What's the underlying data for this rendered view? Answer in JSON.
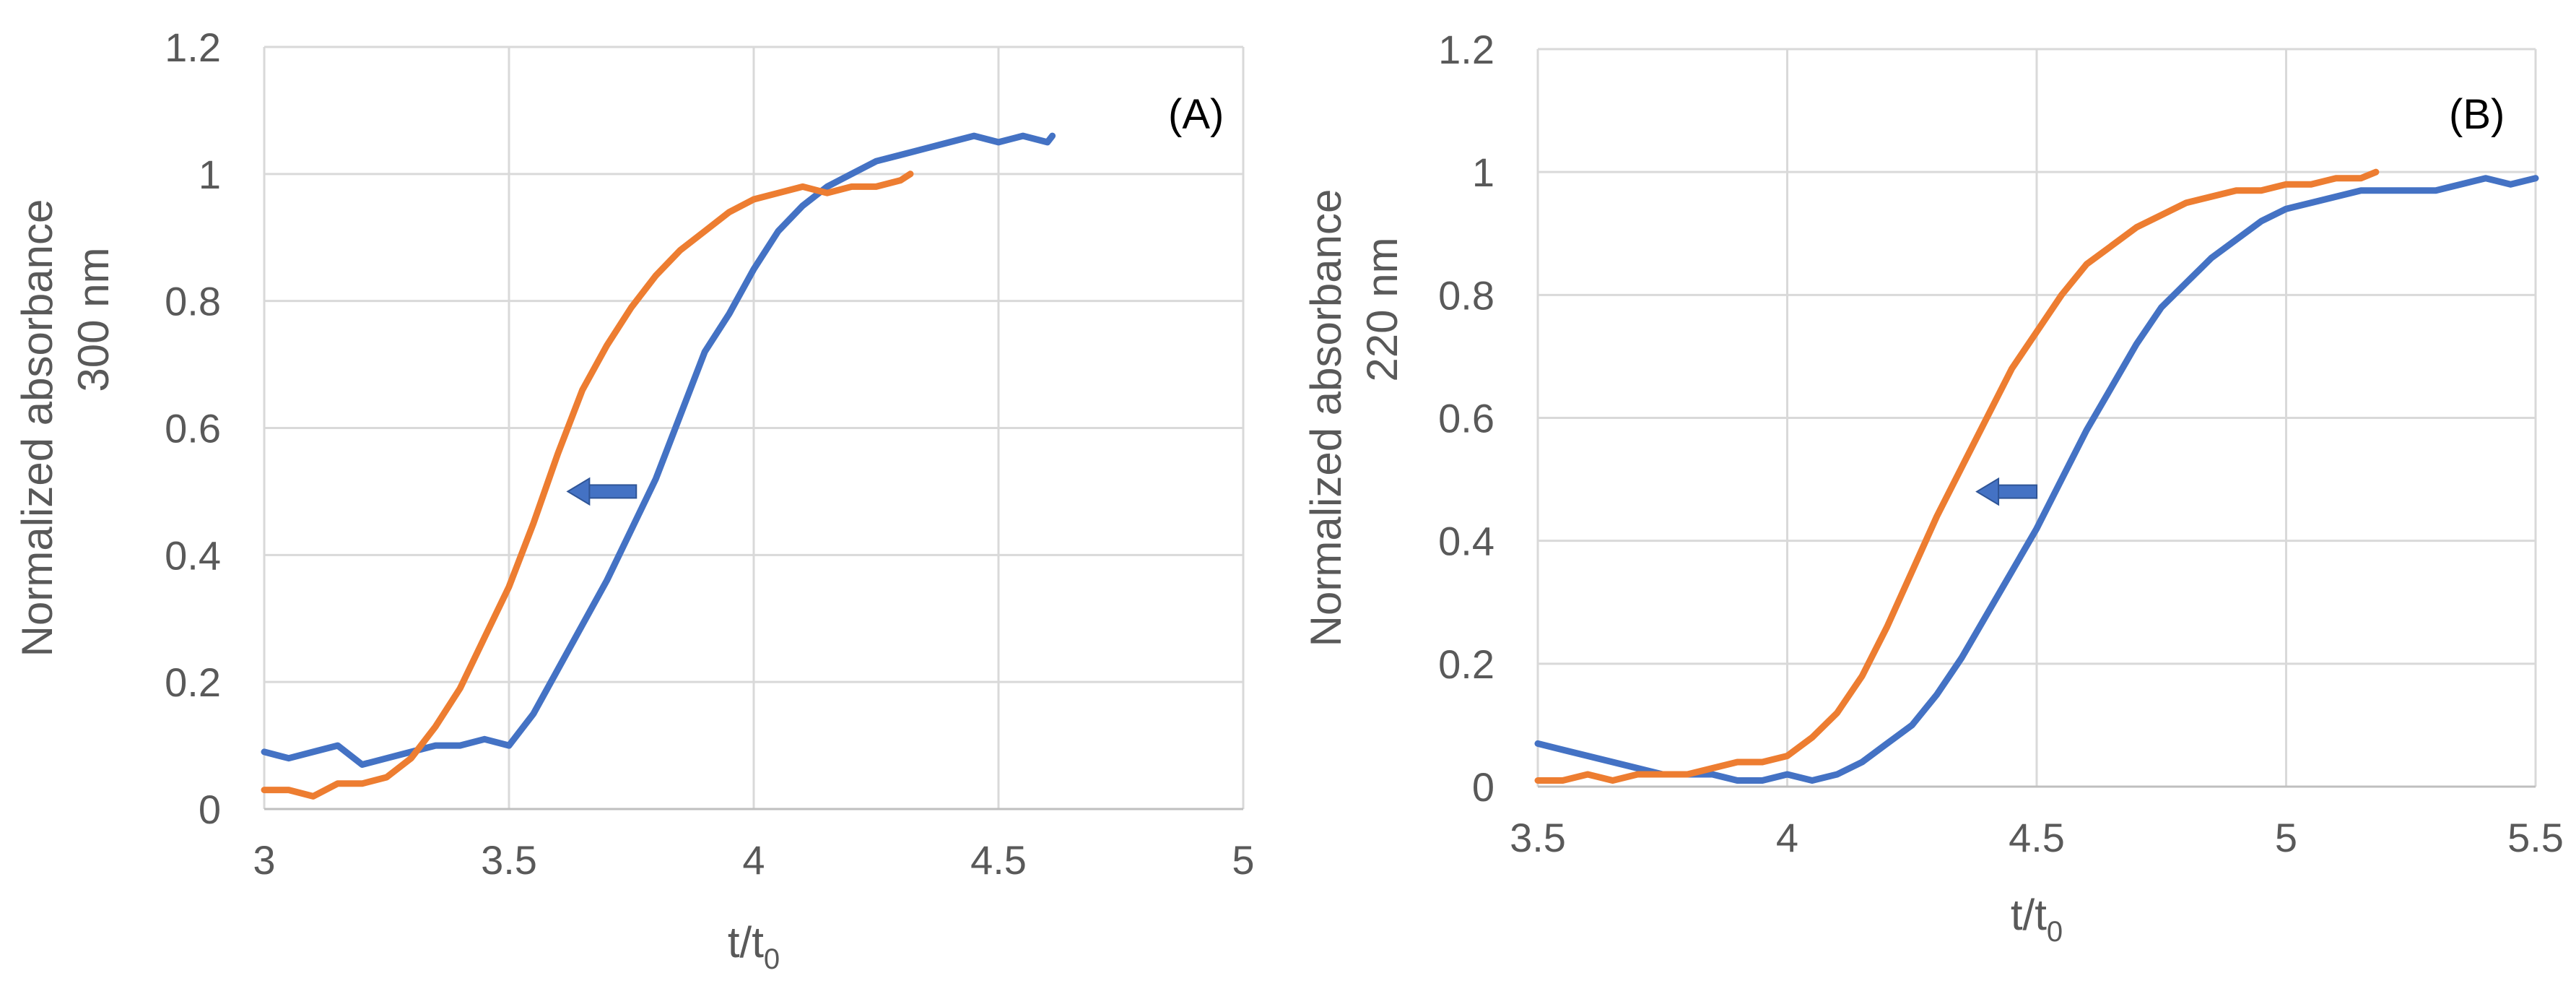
{
  "chart_data": [
    {
      "type": "line",
      "panel_label": "(A)",
      "xlabel": "t/t",
      "xlabel_sub": "0",
      "ylabel_lines": [
        "Normalized absorbance",
        "300 nm"
      ],
      "xlim": [
        3,
        5
      ],
      "ylim": [
        0,
        1.2
      ],
      "xticks": [
        3,
        3.5,
        4,
        4.5,
        5
      ],
      "yticks": [
        0,
        0.2,
        0.4,
        0.6,
        0.8,
        1,
        1.2
      ],
      "xtick_labels": [
        "3",
        "3.5",
        "4",
        "4.5",
        "5"
      ],
      "ytick_labels": [
        "0",
        "0.2",
        "0.4",
        "0.6",
        "0.8",
        "1",
        "1.2"
      ],
      "grid": true,
      "arrow": {
        "from": [
          3.76,
          0.5
        ],
        "to": [
          3.62,
          0.5
        ],
        "color": "#4472c4"
      },
      "series": [
        {
          "name": "blue",
          "color": "#4472c4",
          "x": [
            3.0,
            3.05,
            3.1,
            3.15,
            3.2,
            3.25,
            3.3,
            3.35,
            3.4,
            3.45,
            3.5,
            3.55,
            3.6,
            3.65,
            3.7,
            3.75,
            3.8,
            3.85,
            3.9,
            3.95,
            4.0,
            4.05,
            4.1,
            4.15,
            4.2,
            4.25,
            4.3,
            4.35,
            4.4,
            4.45,
            4.5,
            4.55,
            4.6,
            4.61
          ],
          "y": [
            0.09,
            0.08,
            0.09,
            0.1,
            0.07,
            0.08,
            0.09,
            0.1,
            0.1,
            0.11,
            0.1,
            0.15,
            0.22,
            0.29,
            0.36,
            0.44,
            0.52,
            0.62,
            0.72,
            0.78,
            0.85,
            0.91,
            0.95,
            0.98,
            1.0,
            1.02,
            1.03,
            1.04,
            1.05,
            1.06,
            1.05,
            1.06,
            1.05,
            1.06
          ]
        },
        {
          "name": "orange",
          "color": "#ed7d31",
          "x": [
            3.0,
            3.05,
            3.1,
            3.15,
            3.2,
            3.25,
            3.3,
            3.35,
            3.4,
            3.45,
            3.5,
            3.55,
            3.6,
            3.65,
            3.7,
            3.75,
            3.8,
            3.85,
            3.9,
            3.95,
            4.0,
            4.05,
            4.1,
            4.15,
            4.2,
            4.25,
            4.3,
            4.32
          ],
          "y": [
            0.03,
            0.03,
            0.02,
            0.04,
            0.04,
            0.05,
            0.08,
            0.13,
            0.19,
            0.27,
            0.35,
            0.45,
            0.56,
            0.66,
            0.73,
            0.79,
            0.84,
            0.88,
            0.91,
            0.94,
            0.96,
            0.97,
            0.98,
            0.97,
            0.98,
            0.98,
            0.99,
            1.0
          ]
        }
      ]
    },
    {
      "type": "line",
      "panel_label": "(B)",
      "xlabel": "t/t",
      "xlabel_sub": "0",
      "ylabel_lines": [
        "Normalized absorbance",
        "220 nm"
      ],
      "xlim": [
        3.5,
        5.5
      ],
      "ylim": [
        0,
        1.2
      ],
      "xticks": [
        3.5,
        4,
        4.5,
        5,
        5.5
      ],
      "yticks": [
        0,
        0.2,
        0.4,
        0.6,
        0.8,
        1,
        1.2
      ],
      "xtick_labels": [
        "3.5",
        "4",
        "4.5",
        "5",
        "5.5"
      ],
      "ytick_labels": [
        "0",
        "0.2",
        "0.4",
        "0.6",
        "0.8",
        "1",
        "1.2"
      ],
      "grid": true,
      "arrow": {
        "from": [
          4.5,
          0.48
        ],
        "to": [
          4.38,
          0.48
        ],
        "color": "#4472c4"
      },
      "series": [
        {
          "name": "blue",
          "color": "#4472c4",
          "x": [
            3.5,
            3.55,
            3.6,
            3.65,
            3.7,
            3.75,
            3.8,
            3.85,
            3.9,
            3.95,
            4.0,
            4.05,
            4.1,
            4.15,
            4.2,
            4.25,
            4.3,
            4.35,
            4.4,
            4.45,
            4.5,
            4.55,
            4.6,
            4.65,
            4.7,
            4.75,
            4.8,
            4.85,
            4.9,
            4.95,
            5.0,
            5.05,
            5.1,
            5.15,
            5.2,
            5.25,
            5.3,
            5.35,
            5.4,
            5.45,
            5.5
          ],
          "y": [
            0.07,
            0.06,
            0.05,
            0.04,
            0.03,
            0.02,
            0.02,
            0.02,
            0.01,
            0.01,
            0.02,
            0.01,
            0.02,
            0.04,
            0.07,
            0.1,
            0.15,
            0.21,
            0.28,
            0.35,
            0.42,
            0.5,
            0.58,
            0.65,
            0.72,
            0.78,
            0.82,
            0.86,
            0.89,
            0.92,
            0.94,
            0.95,
            0.96,
            0.97,
            0.97,
            0.97,
            0.97,
            0.98,
            0.99,
            0.98,
            0.99
          ]
        },
        {
          "name": "orange",
          "color": "#ed7d31",
          "x": [
            3.5,
            3.55,
            3.6,
            3.65,
            3.7,
            3.75,
            3.8,
            3.85,
            3.9,
            3.95,
            4.0,
            4.05,
            4.1,
            4.15,
            4.2,
            4.25,
            4.3,
            4.35,
            4.4,
            4.45,
            4.5,
            4.55,
            4.6,
            4.65,
            4.7,
            4.75,
            4.8,
            4.85,
            4.9,
            4.95,
            5.0,
            5.05,
            5.1,
            5.15,
            5.18
          ],
          "y": [
            0.01,
            0.01,
            0.02,
            0.01,
            0.02,
            0.02,
            0.02,
            0.03,
            0.04,
            0.04,
            0.05,
            0.08,
            0.12,
            0.18,
            0.26,
            0.35,
            0.44,
            0.52,
            0.6,
            0.68,
            0.74,
            0.8,
            0.85,
            0.88,
            0.91,
            0.93,
            0.95,
            0.96,
            0.97,
            0.97,
            0.98,
            0.98,
            0.99,
            0.99,
            1.0
          ]
        }
      ]
    }
  ]
}
